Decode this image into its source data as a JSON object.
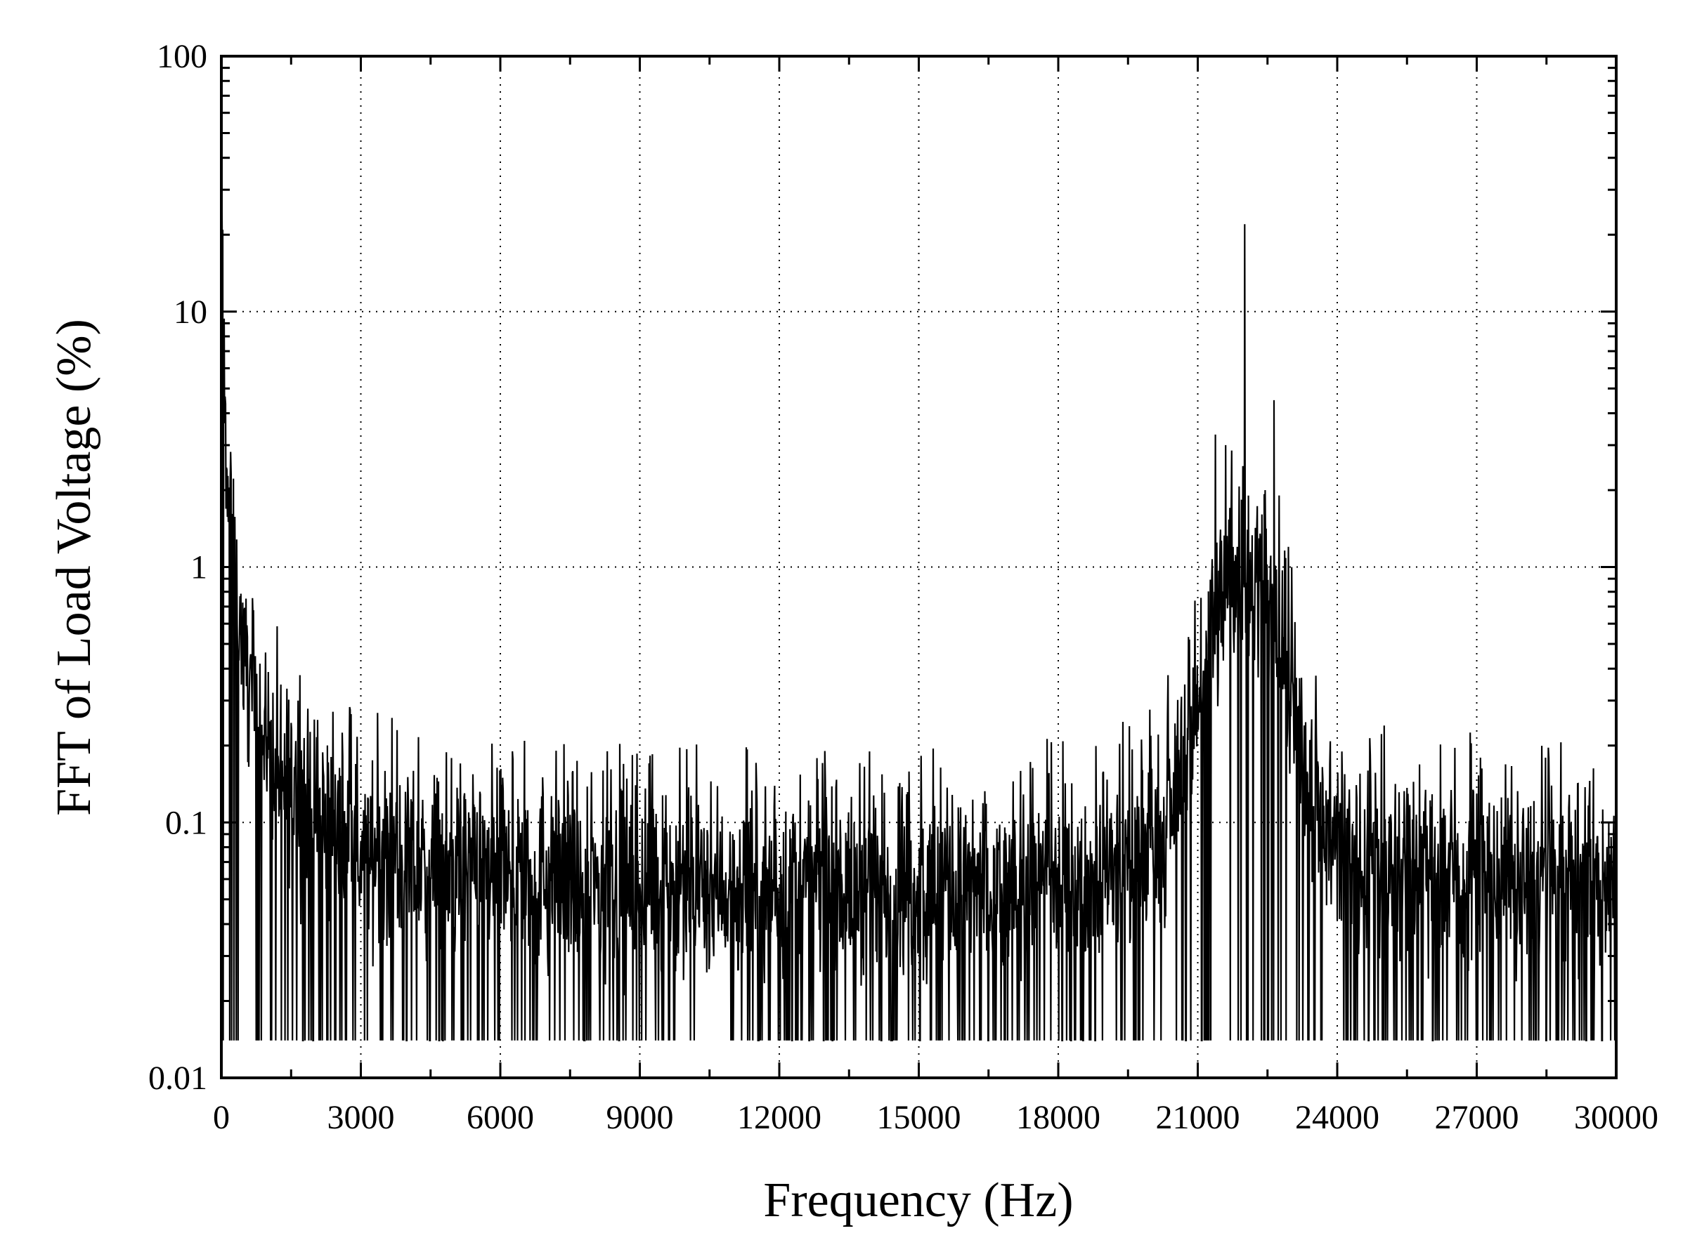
{
  "chart_data": {
    "type": "line",
    "title": "",
    "xlabel": "Frequency (Hz)",
    "ylabel": "FFT of Load Voltage (%)",
    "xlim": [
      0,
      30000
    ],
    "ylim": [
      0.01,
      100
    ],
    "yscale": "log",
    "grid": true,
    "legend": "none",
    "x_ticks": [
      0,
      3000,
      6000,
      9000,
      12000,
      15000,
      18000,
      21000,
      24000,
      27000,
      30000
    ],
    "x_tick_labels": [
      "0",
      "3000",
      "6000",
      "9000",
      "12000",
      "15000",
      "18000",
      "21000",
      "24000",
      "27000",
      "30000"
    ],
    "y_ticks": [
      0.01,
      0.1,
      1,
      10,
      100
    ],
    "y_tick_labels": [
      "0.01",
      "0.1",
      "1",
      "10",
      "100"
    ],
    "series": [
      {
        "color": "#000000",
        "envelope": [
          {
            "x": 0,
            "y": 30
          },
          {
            "x": 50,
            "y": 10
          },
          {
            "x": 100,
            "y": 3
          },
          {
            "x": 200,
            "y": 1.5
          },
          {
            "x": 300,
            "y": 0.8
          },
          {
            "x": 500,
            "y": 0.45
          },
          {
            "x": 800,
            "y": 0.25
          },
          {
            "x": 1200,
            "y": 0.17
          },
          {
            "x": 1800,
            "y": 0.12
          },
          {
            "x": 2500,
            "y": 0.09
          },
          {
            "x": 3500,
            "y": 0.075
          },
          {
            "x": 5000,
            "y": 0.065
          },
          {
            "x": 8000,
            "y": 0.06
          },
          {
            "x": 12000,
            "y": 0.055
          },
          {
            "x": 16000,
            "y": 0.055
          },
          {
            "x": 18000,
            "y": 0.06
          },
          {
            "x": 19500,
            "y": 0.07
          },
          {
            "x": 20300,
            "y": 0.1
          },
          {
            "x": 20800,
            "y": 0.2
          },
          {
            "x": 21200,
            "y": 0.5
          },
          {
            "x": 21600,
            "y": 0.9
          },
          {
            "x": 22000,
            "y": 1.0
          },
          {
            "x": 22400,
            "y": 0.9
          },
          {
            "x": 22800,
            "y": 0.5
          },
          {
            "x": 23200,
            "y": 0.2
          },
          {
            "x": 23700,
            "y": 0.1
          },
          {
            "x": 24500,
            "y": 0.07
          },
          {
            "x": 30000,
            "y": 0.055
          }
        ],
        "peaks": [
          {
            "x": 0,
            "y": 30
          },
          {
            "x": 150,
            "y": 1.5
          },
          {
            "x": 1650,
            "y": 0.3
          },
          {
            "x": 8300,
            "y": 0.19
          },
          {
            "x": 21380,
            "y": 3.3
          },
          {
            "x": 21600,
            "y": 3.0
          },
          {
            "x": 22010,
            "y": 22
          },
          {
            "x": 22450,
            "y": 2.0
          },
          {
            "x": 22640,
            "y": 4.5
          },
          {
            "x": 22950,
            "y": 1.2
          }
        ],
        "noise_floor": 0.014
      }
    ]
  }
}
